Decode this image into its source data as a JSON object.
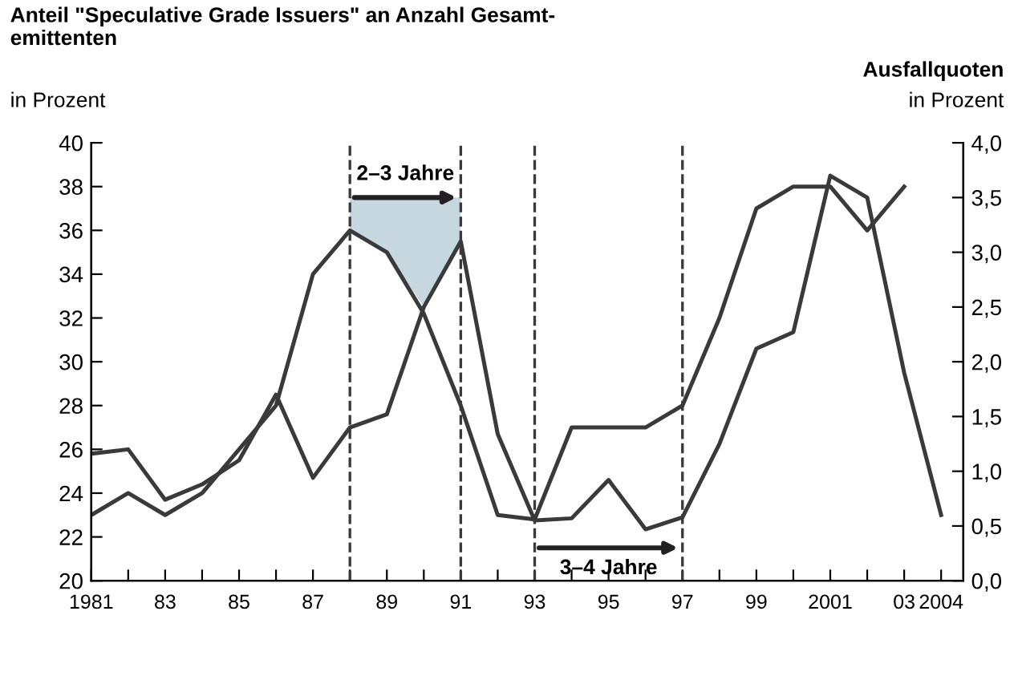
{
  "chart_data": {
    "type": "line",
    "ylabel": "Anteil \"Speculative Grade Issuers\" an Anzahl Gesamt-\nemittenten",
    "y2label": "Ausfallquoten",
    "x": [
      1981,
      1982,
      1983,
      1984,
      1985,
      1986,
      1987,
      1988,
      1989,
      1990,
      1991,
      1992,
      1993,
      1994,
      1995,
      1996,
      1997,
      1998,
      1999,
      2000,
      2001,
      2002,
      2003,
      2004
    ],
    "series": [
      {
        "color": "#3a3a3a",
        "values": [
          23,
          24,
          23,
          24,
          26,
          28,
          34,
          36,
          35,
          32.2,
          28,
          23,
          22.8,
          27,
          27,
          27,
          28,
          32,
          37,
          38,
          38,
          36,
          38,
          null
        ]
      },
      {
        "color": "#3a3a3a",
        "axis": "y2",
        "values": [
          1.16,
          1.2,
          0.74,
          0.88,
          1.1,
          1.7,
          0.94,
          1.4,
          1.52,
          2.5,
          3.1,
          1.34,
          0.55,
          0.57,
          0.92,
          0.47,
          0.58,
          1.25,
          2.12,
          2.27,
          3.7,
          3.5,
          1.9,
          0.6
        ]
      }
    ],
    "xlim": [
      1981,
      2004.6
    ],
    "xticks": [
      {
        "value": 1981,
        "label": "1981"
      },
      {
        "value": 1982,
        "label": null
      },
      {
        "value": 1983,
        "label": "83"
      },
      {
        "value": 1984,
        "label": null
      },
      {
        "value": 1985,
        "label": "85"
      },
      {
        "value": 1986,
        "label": null
      },
      {
        "value": 1987,
        "label": "87"
      },
      {
        "value": 1988,
        "label": null
      },
      {
        "value": 1989,
        "label": "89"
      },
      {
        "value": 1990,
        "label": null
      },
      {
        "value": 1991,
        "label": "91"
      },
      {
        "value": 1992,
        "label": null
      },
      {
        "value": 1993,
        "label": "93"
      },
      {
        "value": 1994,
        "label": null
      },
      {
        "value": 1995,
        "label": "95"
      },
      {
        "value": 1996,
        "label": null
      },
      {
        "value": 1997,
        "label": "97"
      },
      {
        "value": 1998,
        "label": null
      },
      {
        "value": 1999,
        "label": "99"
      },
      {
        "value": 2000,
        "label": null
      },
      {
        "value": 2001,
        "label": "2001"
      },
      {
        "value": 2002,
        "label": null
      },
      {
        "value": 2003,
        "label": "03"
      },
      {
        "value": 2004,
        "label": "2004"
      }
    ],
    "ylim": [
      20,
      40
    ],
    "yticks": [
      20,
      22,
      24,
      26,
      28,
      30,
      32,
      34,
      36,
      38,
      40
    ],
    "y2lim": [
      0,
      4
    ],
    "y2ticks": [
      {
        "value": 0,
        "label": "0,0"
      },
      {
        "value": 0.5,
        "label": "0,5"
      },
      {
        "value": 1,
        "label": "1,0"
      },
      {
        "value": 1.5,
        "label": "1,5"
      },
      {
        "value": 2,
        "label": "2,0"
      },
      {
        "value": 2.5,
        "label": "2,5"
      },
      {
        "value": 3,
        "label": "3,0"
      },
      {
        "value": 3.5,
        "label": "3,5"
      },
      {
        "value": 4,
        "label": "4,0"
      }
    ],
    "ref_lines": [
      {
        "axis": "x",
        "value": 1988,
        "line_style": "dashed"
      },
      {
        "axis": "x",
        "value": 1991,
        "line_style": "dashed"
      },
      {
        "axis": "x",
        "value": 1993,
        "line_style": "dashed"
      },
      {
        "axis": "x",
        "value": 1997,
        "line_style": "dashed"
      }
    ],
    "annotations": [
      "in Prozent",
      "in Prozent",
      "2–3 Jahre",
      "3–4 Jahre"
    ],
    "grid": false,
    "line_style": "solid",
    "marker": "none"
  }
}
